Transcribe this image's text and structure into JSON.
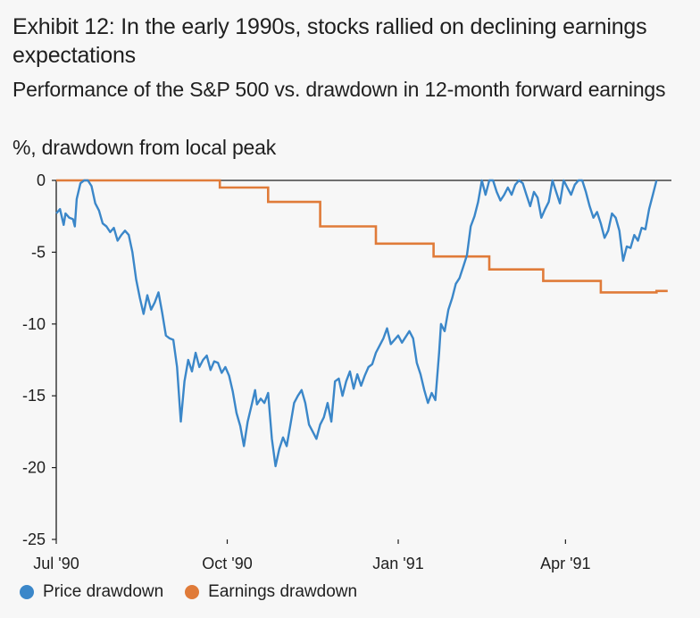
{
  "header": {
    "title": "Exhibit 12: In the early 1990s, stocks rallied on declining earnings expectations",
    "subtitle": "Performance of the S&P 500 vs. drawdown in 12-month forward earnings",
    "unit": "%, drawdown from local peak"
  },
  "colors": {
    "price": "#3b87c9",
    "earnings": "#e07b39",
    "axis": "#1f1f1f"
  },
  "chart_data": {
    "type": "line",
    "title": "Performance of the S&P 500 vs. drawdown in 12-month forward earnings",
    "ylabel": "%, drawdown from local peak",
    "xlabel": "",
    "ylim": [
      -25,
      0
    ],
    "yticks": [
      0,
      -5,
      -10,
      -15,
      -20,
      -25
    ],
    "xlim": [
      "1990-07-01",
      "1991-05-28"
    ],
    "xticks": [
      {
        "label": "Jul '90",
        "date": "1990-07-01"
      },
      {
        "label": "Oct '90",
        "date": "1990-10-01"
      },
      {
        "label": "Jan '91",
        "date": "1991-01-01"
      },
      {
        "label": "Apr '91",
        "date": "1991-04-01"
      }
    ],
    "legend": "bottom",
    "grid": false,
    "series": [
      {
        "name": "Price drawdown",
        "color": "#3b87c9",
        "points": [
          [
            "1990-07-01",
            -2.3
          ],
          [
            "1990-07-03",
            -2.0
          ],
          [
            "1990-07-05",
            -3.1
          ],
          [
            "1990-07-06",
            -2.3
          ],
          [
            "1990-07-08",
            -2.6
          ],
          [
            "1990-07-10",
            -2.7
          ],
          [
            "1990-07-11",
            -3.2
          ],
          [
            "1990-07-12",
            -1.3
          ],
          [
            "1990-07-14",
            -0.2
          ],
          [
            "1990-07-16",
            0.0
          ],
          [
            "1990-07-18",
            0.0
          ],
          [
            "1990-07-20",
            -0.4
          ],
          [
            "1990-07-22",
            -1.6
          ],
          [
            "1990-07-24",
            -2.1
          ],
          [
            "1990-07-26",
            -3.0
          ],
          [
            "1990-07-28",
            -3.2
          ],
          [
            "1990-07-30",
            -3.6
          ],
          [
            "1990-08-01",
            -3.3
          ],
          [
            "1990-08-03",
            -4.2
          ],
          [
            "1990-08-05",
            -3.8
          ],
          [
            "1990-08-07",
            -3.5
          ],
          [
            "1990-08-09",
            -3.8
          ],
          [
            "1990-08-11",
            -5.0
          ],
          [
            "1990-08-13",
            -6.9
          ],
          [
            "1990-08-15",
            -8.2
          ],
          [
            "1990-08-17",
            -9.3
          ],
          [
            "1990-08-19",
            -8.0
          ],
          [
            "1990-08-21",
            -9.0
          ],
          [
            "1990-08-23",
            -8.5
          ],
          [
            "1990-08-25",
            -7.8
          ],
          [
            "1990-08-27",
            -9.2
          ],
          [
            "1990-08-29",
            -10.8
          ],
          [
            "1990-08-31",
            -11.0
          ],
          [
            "1990-09-02",
            -11.1
          ],
          [
            "1990-09-04",
            -13.0
          ],
          [
            "1990-09-06",
            -16.8
          ],
          [
            "1990-09-08",
            -14.0
          ],
          [
            "1990-09-10",
            -12.5
          ],
          [
            "1990-09-12",
            -13.3
          ],
          [
            "1990-09-14",
            -12.0
          ],
          [
            "1990-09-16",
            -13.0
          ],
          [
            "1990-09-18",
            -12.5
          ],
          [
            "1990-09-20",
            -12.2
          ],
          [
            "1990-09-22",
            -13.2
          ],
          [
            "1990-09-24",
            -12.6
          ],
          [
            "1990-09-26",
            -12.7
          ],
          [
            "1990-09-28",
            -13.4
          ],
          [
            "1990-09-30",
            -13.0
          ],
          [
            "1990-10-02",
            -13.6
          ],
          [
            "1990-10-04",
            -14.7
          ],
          [
            "1990-10-06",
            -16.2
          ],
          [
            "1990-10-08",
            -17.1
          ],
          [
            "1990-10-10",
            -18.5
          ],
          [
            "1990-10-12",
            -16.8
          ],
          [
            "1990-10-14",
            -15.7
          ],
          [
            "1990-10-16",
            -14.6
          ],
          [
            "1990-10-17",
            -15.6
          ],
          [
            "1990-10-19",
            -15.2
          ],
          [
            "1990-10-21",
            -15.5
          ],
          [
            "1990-10-23",
            -14.8
          ],
          [
            "1990-10-25",
            -18.0
          ],
          [
            "1990-10-27",
            -19.9
          ],
          [
            "1990-10-29",
            -18.7
          ],
          [
            "1990-10-31",
            -17.9
          ],
          [
            "1990-11-02",
            -18.5
          ],
          [
            "1990-11-04",
            -17.0
          ],
          [
            "1990-11-06",
            -15.5
          ],
          [
            "1990-11-08",
            -15.0
          ],
          [
            "1990-11-10",
            -14.6
          ],
          [
            "1990-11-12",
            -15.5
          ],
          [
            "1990-11-14",
            -17.0
          ],
          [
            "1990-11-16",
            -17.5
          ],
          [
            "1990-11-18",
            -18.0
          ],
          [
            "1990-11-20",
            -17.0
          ],
          [
            "1990-11-22",
            -16.5
          ],
          [
            "1990-11-24",
            -15.5
          ],
          [
            "1990-11-26",
            -16.8
          ],
          [
            "1990-11-28",
            -14.0
          ],
          [
            "1990-11-30",
            -13.8
          ],
          [
            "1990-12-02",
            -15.0
          ],
          [
            "1990-12-04",
            -14.0
          ],
          [
            "1990-12-06",
            -13.3
          ],
          [
            "1990-12-08",
            -14.5
          ],
          [
            "1990-12-10",
            -13.5
          ],
          [
            "1990-12-12",
            -14.3
          ],
          [
            "1990-12-14",
            -13.6
          ],
          [
            "1990-12-16",
            -13.0
          ],
          [
            "1990-12-18",
            -12.8
          ],
          [
            "1990-12-20",
            -12.0
          ],
          [
            "1990-12-22",
            -11.5
          ],
          [
            "1990-12-24",
            -11.0
          ],
          [
            "1990-12-26",
            -10.3
          ],
          [
            "1990-12-28",
            -11.4
          ],
          [
            "1991-01-01",
            -10.8
          ],
          [
            "1991-01-03",
            -11.3
          ],
          [
            "1991-01-05",
            -10.9
          ],
          [
            "1991-01-07",
            -10.5
          ],
          [
            "1991-01-09",
            -11.0
          ],
          [
            "1991-01-11",
            -12.7
          ],
          [
            "1991-01-13",
            -13.5
          ],
          [
            "1991-01-15",
            -14.6
          ],
          [
            "1991-01-17",
            -15.5
          ],
          [
            "1991-01-19",
            -14.8
          ],
          [
            "1991-01-21",
            -15.3
          ],
          [
            "1991-01-23",
            -12.0
          ],
          [
            "1991-01-24",
            -10.0
          ],
          [
            "1991-01-26",
            -10.5
          ],
          [
            "1991-01-28",
            -9.0
          ],
          [
            "1991-01-30",
            -8.2
          ],
          [
            "1991-02-01",
            -7.2
          ],
          [
            "1991-02-03",
            -6.8
          ],
          [
            "1991-02-05",
            -6.0
          ],
          [
            "1991-02-07",
            -5.2
          ],
          [
            "1991-02-09",
            -3.2
          ],
          [
            "1991-02-11",
            -2.5
          ],
          [
            "1991-02-13",
            -1.5
          ],
          [
            "1991-02-15",
            0.0
          ],
          [
            "1991-02-17",
            -1.0
          ],
          [
            "1991-02-19",
            0.0
          ],
          [
            "1991-02-21",
            0.0
          ],
          [
            "1991-02-23",
            -0.8
          ],
          [
            "1991-02-25",
            -1.4
          ],
          [
            "1991-02-27",
            -1.0
          ],
          [
            "1991-03-01",
            -0.5
          ],
          [
            "1991-03-03",
            -1.0
          ],
          [
            "1991-03-05",
            -0.3
          ],
          [
            "1991-03-07",
            0.0
          ],
          [
            "1991-03-09",
            -0.2
          ],
          [
            "1991-03-11",
            -1.0
          ],
          [
            "1991-03-13",
            -1.8
          ],
          [
            "1991-03-15",
            -0.8
          ],
          [
            "1991-03-17",
            -1.2
          ],
          [
            "1991-03-19",
            -2.6
          ],
          [
            "1991-03-21",
            -2.0
          ],
          [
            "1991-03-23",
            -1.5
          ],
          [
            "1991-03-25",
            0.0
          ],
          [
            "1991-03-27",
            -0.8
          ],
          [
            "1991-03-29",
            -1.6
          ],
          [
            "1991-03-31",
            0.0
          ],
          [
            "1991-04-02",
            -0.5
          ],
          [
            "1991-04-04",
            -1.0
          ],
          [
            "1991-04-06",
            -0.3
          ],
          [
            "1991-04-08",
            0.0
          ],
          [
            "1991-04-10",
            0.0
          ],
          [
            "1991-04-12",
            -0.8
          ],
          [
            "1991-04-14",
            -1.8
          ],
          [
            "1991-04-16",
            -2.6
          ],
          [
            "1991-04-18",
            -2.2
          ],
          [
            "1991-04-20",
            -3.0
          ],
          [
            "1991-04-22",
            -4.0
          ],
          [
            "1991-04-24",
            -3.5
          ],
          [
            "1991-04-26",
            -2.3
          ],
          [
            "1991-04-28",
            -2.6
          ],
          [
            "1991-04-30",
            -3.5
          ],
          [
            "1991-05-02",
            -5.6
          ],
          [
            "1991-05-04",
            -4.6
          ],
          [
            "1991-05-06",
            -4.7
          ],
          [
            "1991-05-08",
            -3.8
          ],
          [
            "1991-05-10",
            -4.2
          ],
          [
            "1991-05-12",
            -3.3
          ],
          [
            "1991-05-14",
            -3.4
          ],
          [
            "1991-05-16",
            -2.0
          ],
          [
            "1991-05-18",
            -1.0
          ],
          [
            "1991-05-20",
            0.0
          ]
        ]
      },
      {
        "name": "Earnings drawdown",
        "color": "#e07b39",
        "steps": [
          [
            "1990-07-01",
            0.0
          ],
          [
            "1990-09-27",
            -0.5
          ],
          [
            "1990-10-23",
            -1.5
          ],
          [
            "1990-11-20",
            -3.2
          ],
          [
            "1990-12-20",
            -4.4
          ],
          [
            "1991-01-20",
            -5.3
          ],
          [
            "1991-02-19",
            -6.2
          ],
          [
            "1991-03-20",
            -7.0
          ],
          [
            "1991-04-20",
            -7.8
          ],
          [
            "1991-05-20",
            -7.7
          ],
          [
            "1991-05-26",
            -7.7
          ]
        ]
      }
    ]
  },
  "legend_items": [
    {
      "label": "Price drawdown",
      "color": "#3b87c9"
    },
    {
      "label": "Earnings drawdown",
      "color": "#e07b39"
    }
  ]
}
